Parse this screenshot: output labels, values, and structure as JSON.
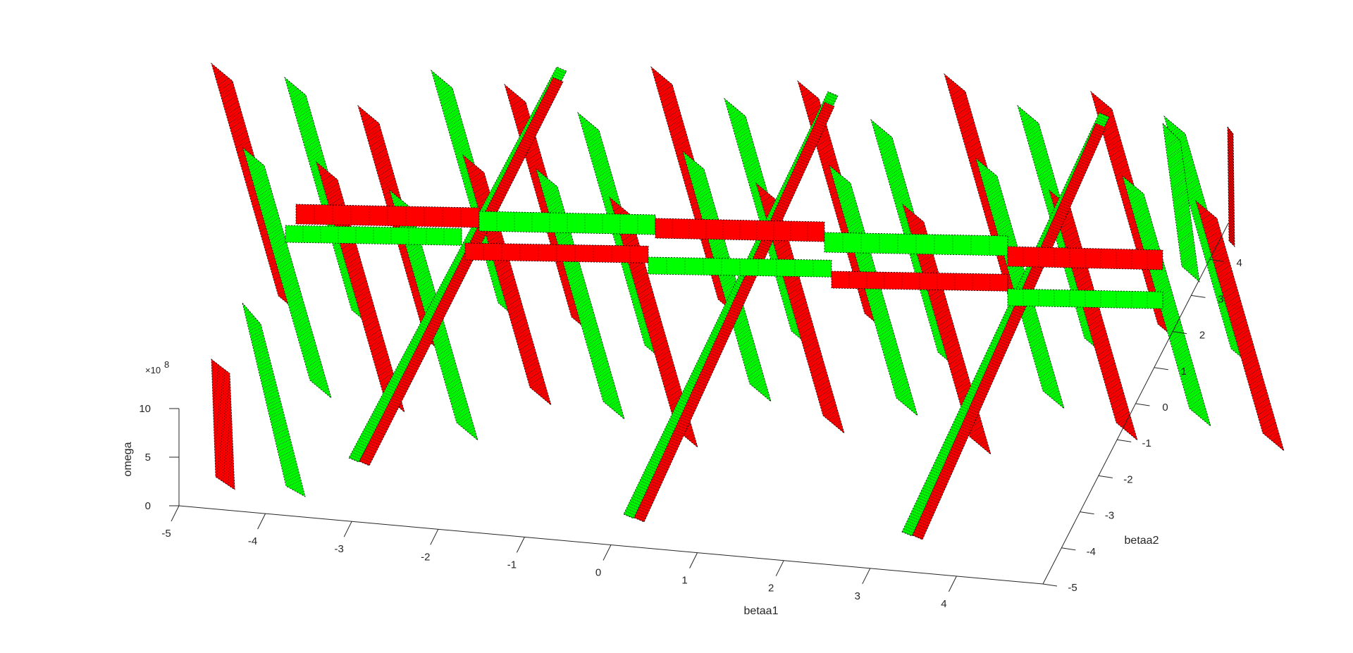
{
  "figure": {
    "background": "#ffffff"
  },
  "chart_data": {
    "type": "surface3d",
    "title": "",
    "xlabel": "betaa1",
    "ylabel": "betaa2",
    "zlabel": "omega",
    "z_exponent": "8",
    "xlim": [
      -5,
      5
    ],
    "ylim": [
      -5,
      5
    ],
    "zlim": [
      0,
      10
    ],
    "x_ticks": [
      "-5",
      "-4",
      "-3",
      "-2",
      "-1",
      "0",
      "1",
      "2",
      "3",
      "4"
    ],
    "y_ticks": [
      "-5",
      "-4",
      "-3",
      "-2",
      "-1",
      "0",
      "1",
      "2",
      "3",
      "4"
    ],
    "z_ticks": [
      "0",
      "5",
      "10"
    ],
    "z_tick_values": [
      0,
      5,
      10
    ],
    "grid": false,
    "legend": "none",
    "colors": {
      "band_a": "#ff0000",
      "band_b": "#00ff00",
      "mesh": "#000000",
      "axis": "#262626"
    },
    "bands": [
      {
        "name": "",
        "color": "#ff0000"
      },
      {
        "name": "",
        "color": "#00ff00"
      }
    ]
  }
}
